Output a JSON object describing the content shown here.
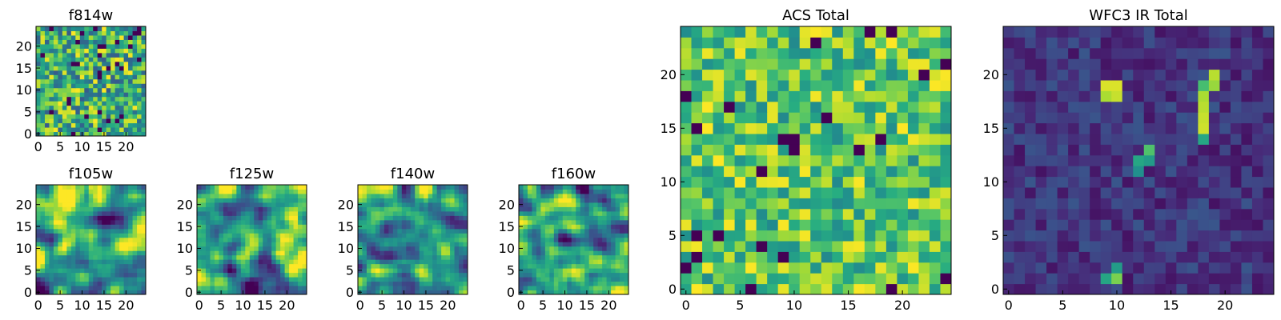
{
  "figure": {
    "background": "#ffffff",
    "colormap": "viridis"
  },
  "chart_data": [
    {
      "id": "f814w",
      "type": "heatmap",
      "title": "f814w",
      "grid_size": 25,
      "x_ticks": [
        0,
        5,
        10,
        15,
        20
      ],
      "y_ticks": [
        0,
        5,
        10,
        15,
        20
      ],
      "xlim": [
        0,
        25
      ],
      "ylim": [
        0,
        25
      ],
      "value_range": [
        0,
        1
      ],
      "seed": 3,
      "field_style": "noise"
    },
    {
      "id": "f105w",
      "type": "heatmap",
      "title": "f105w",
      "grid_size": 25,
      "x_ticks": [
        0,
        5,
        10,
        15,
        20
      ],
      "y_ticks": [
        0,
        5,
        10,
        15,
        20
      ],
      "xlim": [
        0,
        25
      ],
      "ylim": [
        0,
        25
      ],
      "value_range": [
        0,
        1
      ],
      "seed": 11,
      "field_style": "smooth"
    },
    {
      "id": "f125w",
      "type": "heatmap",
      "title": "f125w",
      "grid_size": 25,
      "x_ticks": [
        0,
        5,
        10,
        15,
        20
      ],
      "y_ticks": [
        0,
        5,
        10,
        15,
        20
      ],
      "xlim": [
        0,
        25
      ],
      "ylim": [
        0,
        25
      ],
      "value_range": [
        0,
        1
      ],
      "seed": 17,
      "field_style": "smooth"
    },
    {
      "id": "f140w",
      "type": "heatmap",
      "title": "f140w",
      "grid_size": 25,
      "x_ticks": [
        0,
        5,
        10,
        15,
        20
      ],
      "y_ticks": [
        0,
        5,
        10,
        15,
        20
      ],
      "xlim": [
        0,
        25
      ],
      "ylim": [
        0,
        25
      ],
      "value_range": [
        0,
        1
      ],
      "seed": 23,
      "field_style": "smooth"
    },
    {
      "id": "f160w",
      "type": "heatmap",
      "title": "f160w",
      "grid_size": 25,
      "x_ticks": [
        0,
        5,
        10,
        15,
        20
      ],
      "y_ticks": [
        0,
        5,
        10,
        15,
        20
      ],
      "xlim": [
        0,
        25
      ],
      "ylim": [
        0,
        25
      ],
      "value_range": [
        0,
        1
      ],
      "seed": 29,
      "field_style": "smooth"
    },
    {
      "id": "acs-total",
      "type": "heatmap",
      "title": "ACS Total",
      "grid_size": 25,
      "x_ticks": [
        0,
        5,
        10,
        15,
        20
      ],
      "y_ticks": [
        0,
        5,
        10,
        15,
        20
      ],
      "xlim": [
        0,
        25
      ],
      "ylim": [
        0,
        25
      ],
      "value_range": [
        0,
        1
      ],
      "seed": 41,
      "field_style": "noise-bright"
    },
    {
      "id": "wfc3-ir-total",
      "type": "heatmap",
      "title": "WFC3 IR Total",
      "grid_size": 25,
      "x_ticks": [
        0,
        5,
        10,
        15,
        20
      ],
      "y_ticks": [
        0,
        5,
        10,
        15,
        20
      ],
      "xlim": [
        0,
        25
      ],
      "ylim": [
        0,
        25
      ],
      "value_range": [
        0,
        1
      ],
      "seed": 53,
      "field_style": "dark",
      "bright_pixels": [
        [
          9,
          19,
          0.95
        ],
        [
          10,
          19,
          0.95
        ],
        [
          9,
          18,
          0.88
        ],
        [
          10,
          18,
          0.92
        ],
        [
          19,
          20,
          0.9
        ],
        [
          19,
          19,
          0.85
        ],
        [
          18,
          19,
          0.7
        ],
        [
          18,
          18,
          0.88
        ],
        [
          18,
          17,
          0.9
        ],
        [
          18,
          16,
          0.92
        ],
        [
          18,
          15,
          0.93
        ],
        [
          18,
          14,
          0.6
        ],
        [
          13,
          13,
          0.72
        ],
        [
          12,
          12,
          0.6
        ],
        [
          13,
          12,
          0.55
        ],
        [
          12,
          11,
          0.5
        ],
        [
          10,
          1,
          0.8
        ],
        [
          9,
          1,
          0.6
        ],
        [
          10,
          2,
          0.55
        ]
      ]
    }
  ]
}
